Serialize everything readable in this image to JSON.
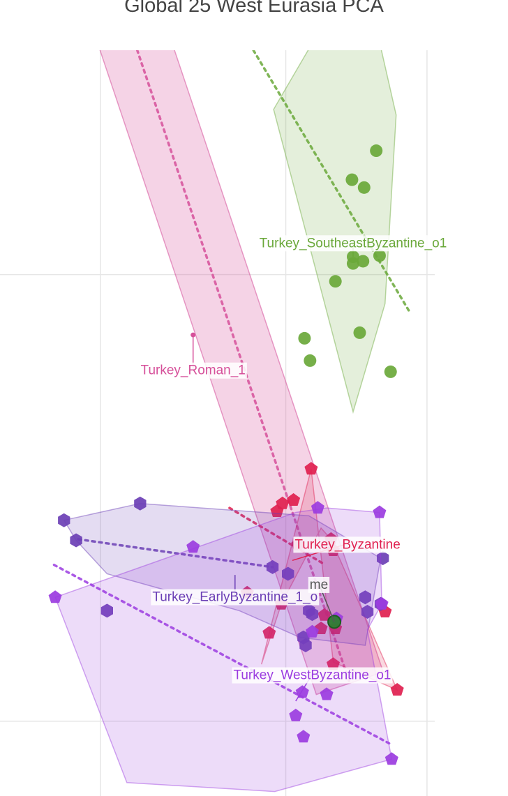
{
  "chart_data": {
    "type": "scatter",
    "title": "Global 25 West Eurasia PCA",
    "xlabel": "",
    "ylabel": "",
    "grid": true,
    "series": [
      {
        "name": "Turkey_SoutheastByzantine_o1",
        "color": "#6aa83a",
        "marker": "circle",
        "hull": [
          [
            1.45,
            -1.23
          ],
          [
            1.74,
            -0.26
          ],
          [
            1.84,
            1.43
          ],
          [
            1.52,
            2.82
          ],
          [
            0.73,
            1.48
          ]
        ],
        "trend": [
          [
            0.45,
            2.17
          ],
          [
            1.96,
            -0.33
          ]
        ],
        "points": [
          [
            1.66,
            1.11
          ],
          [
            1.44,
            0.85
          ],
          [
            1.55,
            0.78
          ],
          [
            1.45,
            0.16
          ],
          [
            1.45,
            0.1
          ],
          [
            1.54,
            0.12
          ],
          [
            1.69,
            0.17
          ],
          [
            1.29,
            -0.06
          ],
          [
            1.51,
            -0.52
          ],
          [
            1.01,
            -0.57
          ],
          [
            1.06,
            -0.77
          ],
          [
            1.79,
            -0.87
          ]
        ]
      },
      {
        "name": "Turkey_Roman_1",
        "color": "#d6509a",
        "marker": "dot",
        "trend": [
          [
            -1.07,
            3.67
          ],
          [
            1.42,
            -3.66
          ]
        ],
        "band": 0.32,
        "points": [
          [
            0.0,
            -0.54
          ]
        ]
      },
      {
        "name": "Turkey_Byzantine",
        "color": "#e0204f",
        "marker": "pentagon",
        "hull": [
          [
            1.07,
            -1.74
          ],
          [
            0.69,
            -3.21
          ],
          [
            0.62,
            -3.49
          ],
          [
            0.8,
            -2.95
          ],
          [
            1.16,
            -2.27
          ],
          [
            1.25,
            -2.37
          ],
          [
            1.85,
            -3.72
          ],
          [
            1.27,
            -3.47
          ]
        ],
        "trend": [
          [
            0.33,
            -2.09
          ],
          [
            1.2,
            -2.6
          ]
        ],
        "points": [
          [
            1.07,
            -1.74
          ],
          [
            0.91,
            -2.02
          ],
          [
            0.81,
            -2.05
          ],
          [
            0.76,
            -2.12
          ],
          [
            1.25,
            -2.37
          ],
          [
            1.27,
            -2.47
          ],
          [
            0.95,
            -2.42
          ],
          [
            0.49,
            -2.85
          ],
          [
            0.8,
            -2.95
          ],
          [
            1.19,
            -3.05
          ],
          [
            1.16,
            -3.17
          ],
          [
            1.29,
            -3.17
          ],
          [
            1.27,
            -3.49
          ],
          [
            1.74,
            -3.02
          ],
          [
            0.69,
            -3.21
          ],
          [
            1.85,
            -3.72
          ]
        ]
      },
      {
        "name": "Turkey_EarlyByzantine_1_o",
        "color": "#6b3fb5",
        "marker": "hexagon",
        "hull": [
          [
            -0.48,
            -2.05
          ],
          [
            -1.17,
            -2.2
          ],
          [
            -1.06,
            -2.38
          ],
          [
            -0.78,
            -2.68
          ],
          [
            0.42,
            -3.01
          ],
          [
            0.97,
            -3.25
          ],
          [
            1.56,
            -3.32
          ],
          [
            1.7,
            -2.54
          ],
          [
            1.05,
            -2.16
          ]
        ],
        "trend": [
          [
            -1.04,
            -2.37
          ],
          [
            0.72,
            -2.62
          ]
        ],
        "points": [
          [
            -0.48,
            -2.05
          ],
          [
            -1.17,
            -2.2
          ],
          [
            -1.06,
            -2.38
          ],
          [
            0.72,
            -2.62
          ],
          [
            1.72,
            -2.54
          ],
          [
            0.86,
            -2.68
          ],
          [
            1.56,
            -2.89
          ],
          [
            1.7,
            -2.95
          ],
          [
            1.58,
            -3.02
          ],
          [
            -0.78,
            -3.01
          ],
          [
            1.05,
            -3.01
          ],
          [
            1.08,
            -3.04
          ],
          [
            1.02,
            -3.32
          ],
          [
            1.0,
            -3.25
          ]
        ]
      },
      {
        "name": "Turkey_WestByzantine_o1",
        "color": "#9b3ce0",
        "marker": "pentagon",
        "hull": [
          [
            0.93,
            -2.13
          ],
          [
            1.21,
            -2.09
          ],
          [
            1.69,
            -2.13
          ],
          [
            1.71,
            -2.95
          ],
          [
            1.58,
            -3.18
          ],
          [
            1.8,
            -4.34
          ],
          [
            0.74,
            -4.63
          ],
          [
            -0.6,
            -4.55
          ],
          [
            -1.25,
            -2.89
          ]
        ],
        "trend": [
          [
            -1.26,
            -2.6
          ],
          [
            1.78,
            -4.2
          ]
        ],
        "points": [
          [
            1.13,
            -2.09
          ],
          [
            1.69,
            -2.13
          ],
          [
            0.0,
            -2.44
          ],
          [
            -1.25,
            -2.89
          ],
          [
            1.71,
            -2.95
          ],
          [
            1.08,
            -3.2
          ],
          [
            1.3,
            -3.08
          ],
          [
            0.99,
            -3.74
          ],
          [
            1.21,
            -3.76
          ],
          [
            0.93,
            -3.95
          ],
          [
            1.0,
            -4.14
          ],
          [
            1.8,
            -4.34
          ]
        ]
      },
      {
        "name": "me",
        "color": "#2e7d32",
        "marker": "circle",
        "points": [
          [
            1.28,
            -3.11
          ]
        ]
      }
    ],
    "labels": [
      {
        "series": "Turkey_SoutheastByzantine_o1",
        "text": "Turkey_SoutheastByzantine_o1",
        "x": 1.45,
        "y": 0.29,
        "anchor": [
          1.45,
          0.16
        ]
      },
      {
        "series": "Turkey_Roman_1",
        "text": "Turkey_Roman_1",
        "x": 0.0,
        "y": -0.85,
        "anchor": [
          0.0,
          -0.54
        ]
      },
      {
        "series": "Turkey_Byzantine",
        "text": "Turkey_Byzantine",
        "x": 1.4,
        "y": -2.41,
        "anchor": [
          0.9,
          -2.56
        ]
      },
      {
        "series": "Turkey_EarlyByzantine_1_o",
        "text": "Turkey_EarlyByzantine_1_o",
        "x": 0.38,
        "y": -2.88,
        "anchor": [
          0.38,
          -2.69
        ]
      },
      {
        "series": "Turkey_WestByzantine_o1",
        "text": "Turkey_WestByzantine_o1",
        "x": 1.08,
        "y": -3.58,
        "anchor": [
          0.93,
          -3.82
        ]
      },
      {
        "series": "me",
        "text": "me",
        "x": 1.14,
        "y": -2.77,
        "anchor": [
          1.28,
          -3.11
        ]
      }
    ],
    "xlim": [
      -1.75,
      2.19
    ],
    "ylim": [
      -4.67,
      2.46
    ],
    "x_gridlines": [
      -0.84,
      0.84,
      2.12
    ],
    "y_gridlines": [
      0.0,
      -4.0
    ]
  }
}
